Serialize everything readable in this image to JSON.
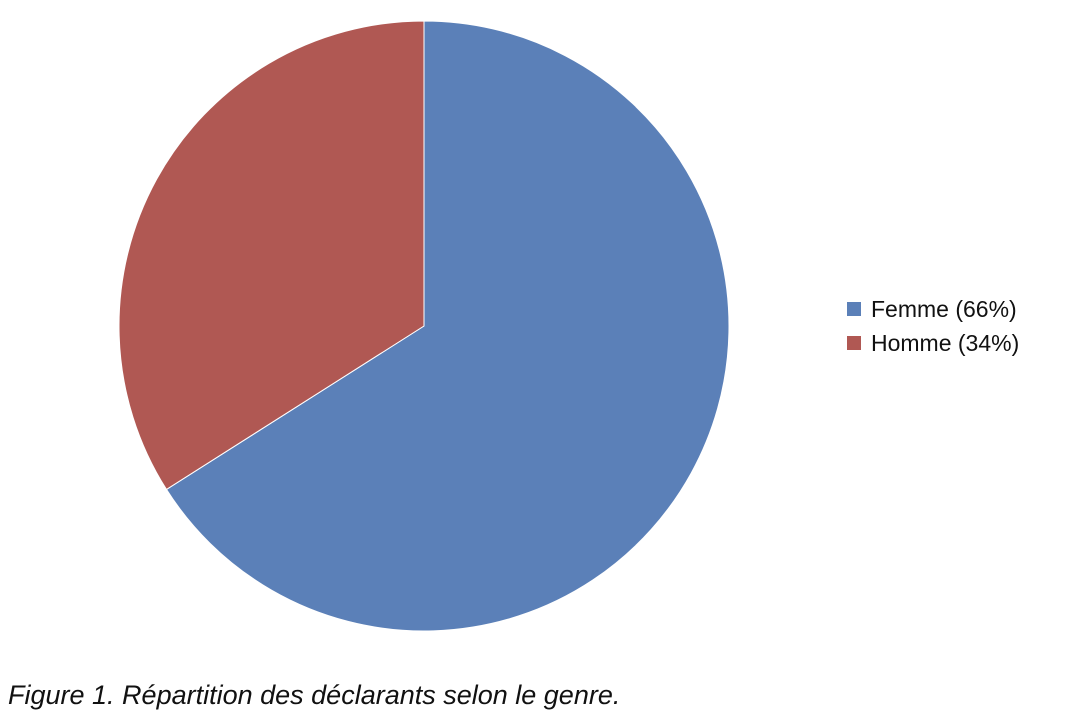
{
  "chart_data": {
    "type": "pie",
    "title": "",
    "slices": [
      {
        "label": "Femme (66%)",
        "value": 66,
        "color": "#5B80B8"
      },
      {
        "label": "Homme (34%)",
        "value": 34,
        "color": "#B05853"
      }
    ],
    "start_angle": "top",
    "direction": "clockwise",
    "legend_position": "right"
  },
  "caption": "Figure 1. Répartition des déclarants selon le genre."
}
